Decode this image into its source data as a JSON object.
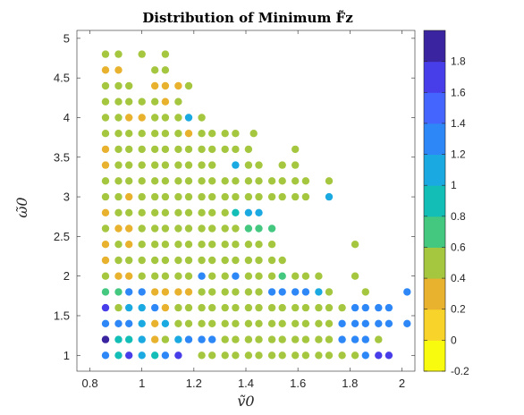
{
  "chart_data": {
    "type": "scatter",
    "title": "Distribution of Minimum F̃z",
    "xlabel": "ṽ0",
    "ylabel": "ω̃0",
    "xlim": [
      0.75,
      2.05
    ],
    "ylim": [
      0.8,
      5.1
    ],
    "xticks": [
      "0.8",
      "1",
      "1.2",
      "1.4",
      "1.6",
      "1.8",
      "2"
    ],
    "yticks": [
      "1",
      "1.5",
      "2",
      "2.5",
      "3",
      "3.5",
      "4",
      "4.5",
      "5"
    ],
    "grid": false,
    "colorbar": {
      "clim": [
        -0.2,
        2.0
      ],
      "ticks": [
        "-0.2",
        "0",
        "0.2",
        "0.4",
        "0.6",
        "0.8",
        "1",
        "1.2",
        "1.4",
        "1.6",
        "1.8"
      ],
      "colors": [
        "#f9fb0e",
        "#f8d32a",
        "#e8b22e",
        "#a5c73f",
        "#44c880",
        "#13beb7",
        "#1ba9e1",
        "#2e87f7",
        "#4566fe",
        "#483ee9",
        "#3a249f"
      ]
    },
    "points": [
      [
        0.86,
        4.8,
        0.5
      ],
      [
        0.91,
        4.8,
        0.5
      ],
      [
        1.0,
        4.8,
        0.5
      ],
      [
        1.09,
        4.8,
        0.5
      ],
      [
        0.86,
        4.6,
        0.35
      ],
      [
        0.91,
        4.6,
        0.35
      ],
      [
        1.05,
        4.6,
        0.5
      ],
      [
        1.09,
        4.6,
        0.5
      ],
      [
        0.86,
        4.4,
        0.5
      ],
      [
        0.91,
        4.4,
        0.5
      ],
      [
        0.95,
        4.4,
        0.5
      ],
      [
        1.05,
        4.4,
        0.35
      ],
      [
        1.09,
        4.4,
        0.35
      ],
      [
        1.14,
        4.4,
        0.25
      ],
      [
        1.18,
        4.4,
        0.5
      ],
      [
        0.86,
        4.2,
        0.5
      ],
      [
        0.91,
        4.2,
        0.5
      ],
      [
        0.95,
        4.2,
        0.5
      ],
      [
        1.0,
        4.2,
        0.5
      ],
      [
        1.05,
        4.2,
        0.5
      ],
      [
        1.09,
        4.2,
        0.35
      ],
      [
        1.14,
        4.2,
        0.5
      ],
      [
        0.86,
        4.0,
        0.5
      ],
      [
        0.91,
        4.0,
        0.5
      ],
      [
        0.95,
        4.0,
        0.35
      ],
      [
        1.0,
        4.0,
        0.35
      ],
      [
        1.05,
        4.0,
        0.5
      ],
      [
        1.09,
        4.0,
        0.5
      ],
      [
        1.14,
        4.0,
        0.5
      ],
      [
        1.18,
        4.0,
        1.1
      ],
      [
        1.23,
        4.0,
        0.5
      ],
      [
        0.86,
        3.8,
        0.5
      ],
      [
        0.91,
        3.8,
        0.5
      ],
      [
        0.95,
        3.8,
        0.5
      ],
      [
        1.0,
        3.8,
        0.5
      ],
      [
        1.05,
        3.8,
        0.5
      ],
      [
        1.09,
        3.8,
        0.5
      ],
      [
        1.14,
        3.8,
        0.5
      ],
      [
        1.18,
        3.8,
        0.35
      ],
      [
        1.23,
        3.8,
        0.5
      ],
      [
        1.27,
        3.8,
        0.5
      ],
      [
        1.32,
        3.8,
        0.5
      ],
      [
        1.36,
        3.8,
        0.5
      ],
      [
        1.43,
        3.8,
        0.5
      ],
      [
        0.86,
        3.6,
        0.25
      ],
      [
        0.91,
        3.6,
        0.5
      ],
      [
        0.95,
        3.6,
        0.5
      ],
      [
        1.0,
        3.6,
        0.5
      ],
      [
        1.05,
        3.6,
        0.5
      ],
      [
        1.09,
        3.6,
        0.5
      ],
      [
        1.14,
        3.6,
        0.5
      ],
      [
        1.18,
        3.6,
        0.5
      ],
      [
        1.23,
        3.6,
        0.5
      ],
      [
        1.27,
        3.6,
        0.5
      ],
      [
        1.32,
        3.6,
        0.5
      ],
      [
        1.36,
        3.6,
        0.5
      ],
      [
        1.41,
        3.6,
        0.5
      ],
      [
        1.59,
        3.6,
        0.5
      ],
      [
        0.86,
        3.4,
        0.25
      ],
      [
        0.91,
        3.4,
        0.5
      ],
      [
        0.95,
        3.4,
        0.5
      ],
      [
        1.0,
        3.4,
        0.5
      ],
      [
        1.05,
        3.4,
        0.5
      ],
      [
        1.09,
        3.4,
        0.5
      ],
      [
        1.14,
        3.4,
        0.5
      ],
      [
        1.18,
        3.4,
        0.5
      ],
      [
        1.23,
        3.4,
        0.5
      ],
      [
        1.27,
        3.4,
        0.5
      ],
      [
        1.36,
        3.4,
        1.1
      ],
      [
        1.41,
        3.4,
        0.5
      ],
      [
        1.45,
        3.4,
        0.5
      ],
      [
        1.54,
        3.4,
        0.5
      ],
      [
        1.59,
        3.4,
        0.5
      ],
      [
        0.86,
        3.2,
        0.5
      ],
      [
        0.91,
        3.2,
        0.5
      ],
      [
        0.95,
        3.2,
        0.5
      ],
      [
        1.0,
        3.2,
        0.5
      ],
      [
        1.05,
        3.2,
        0.5
      ],
      [
        1.09,
        3.2,
        0.5
      ],
      [
        1.14,
        3.2,
        0.5
      ],
      [
        1.18,
        3.2,
        0.5
      ],
      [
        1.23,
        3.2,
        0.5
      ],
      [
        1.27,
        3.2,
        0.5
      ],
      [
        1.32,
        3.2,
        0.5
      ],
      [
        1.36,
        3.2,
        0.5
      ],
      [
        1.41,
        3.2,
        0.5
      ],
      [
        1.45,
        3.2,
        0.5
      ],
      [
        1.5,
        3.2,
        0.5
      ],
      [
        1.54,
        3.2,
        0.5
      ],
      [
        1.59,
        3.2,
        0.5
      ],
      [
        1.63,
        3.2,
        0.5
      ],
      [
        1.72,
        3.2,
        0.5
      ],
      [
        0.86,
        3.0,
        0.5
      ],
      [
        0.91,
        3.0,
        0.5
      ],
      [
        0.95,
        3.0,
        0.35
      ],
      [
        1.0,
        3.0,
        0.5
      ],
      [
        1.05,
        3.0,
        0.5
      ],
      [
        1.09,
        3.0,
        0.5
      ],
      [
        1.14,
        3.0,
        0.5
      ],
      [
        1.18,
        3.0,
        0.5
      ],
      [
        1.23,
        3.0,
        0.5
      ],
      [
        1.27,
        3.0,
        0.5
      ],
      [
        1.32,
        3.0,
        0.5
      ],
      [
        1.36,
        3.0,
        0.5
      ],
      [
        1.41,
        3.0,
        0.5
      ],
      [
        1.45,
        3.0,
        0.5
      ],
      [
        1.5,
        3.0,
        0.5
      ],
      [
        1.54,
        3.0,
        0.5
      ],
      [
        1.59,
        3.0,
        0.5
      ],
      [
        1.63,
        3.0,
        0.5
      ],
      [
        1.72,
        3.0,
        1.1
      ],
      [
        0.86,
        2.8,
        0.35
      ],
      [
        0.91,
        2.8,
        0.5
      ],
      [
        0.95,
        2.8,
        0.5
      ],
      [
        1.0,
        2.8,
        0.5
      ],
      [
        1.05,
        2.8,
        0.5
      ],
      [
        1.09,
        2.8,
        0.5
      ],
      [
        1.14,
        2.8,
        0.5
      ],
      [
        1.18,
        2.8,
        0.5
      ],
      [
        1.23,
        2.8,
        0.5
      ],
      [
        1.27,
        2.8,
        0.5
      ],
      [
        1.32,
        2.8,
        0.5
      ],
      [
        1.36,
        2.8,
        0.85
      ],
      [
        1.41,
        2.8,
        1.1
      ],
      [
        1.45,
        2.8,
        1.1
      ],
      [
        0.86,
        2.6,
        0.5
      ],
      [
        0.91,
        2.6,
        0.25
      ],
      [
        0.95,
        2.6,
        0.25
      ],
      [
        1.0,
        2.6,
        0.5
      ],
      [
        1.05,
        2.6,
        0.5
      ],
      [
        1.09,
        2.6,
        0.5
      ],
      [
        1.14,
        2.6,
        0.5
      ],
      [
        1.18,
        2.6,
        0.5
      ],
      [
        1.23,
        2.6,
        0.5
      ],
      [
        1.27,
        2.6,
        0.5
      ],
      [
        1.32,
        2.6,
        0.5
      ],
      [
        1.36,
        2.6,
        0.5
      ],
      [
        1.41,
        2.6,
        0.7
      ],
      [
        1.45,
        2.6,
        0.7
      ],
      [
        1.5,
        2.6,
        0.7
      ],
      [
        0.86,
        2.4,
        0.25
      ],
      [
        0.91,
        2.4,
        0.5
      ],
      [
        0.95,
        2.4,
        0.25
      ],
      [
        1.0,
        2.4,
        0.5
      ],
      [
        1.05,
        2.4,
        0.5
      ],
      [
        1.09,
        2.4,
        0.5
      ],
      [
        1.14,
        2.4,
        0.5
      ],
      [
        1.18,
        2.4,
        0.5
      ],
      [
        1.23,
        2.4,
        0.5
      ],
      [
        1.27,
        2.4,
        0.5
      ],
      [
        1.32,
        2.4,
        0.5
      ],
      [
        1.36,
        2.4,
        0.5
      ],
      [
        1.41,
        2.4,
        0.5
      ],
      [
        1.45,
        2.4,
        0.5
      ],
      [
        1.5,
        2.4,
        0.5
      ],
      [
        1.82,
        2.4,
        0.5
      ],
      [
        0.86,
        2.2,
        0.25
      ],
      [
        0.91,
        2.2,
        0.5
      ],
      [
        0.95,
        2.2,
        0.5
      ],
      [
        1.0,
        2.2,
        0.5
      ],
      [
        1.05,
        2.2,
        0.5
      ],
      [
        1.09,
        2.2,
        0.5
      ],
      [
        1.14,
        2.2,
        0.5
      ],
      [
        1.18,
        2.2,
        0.5
      ],
      [
        1.23,
        2.2,
        0.5
      ],
      [
        1.27,
        2.2,
        0.5
      ],
      [
        1.32,
        2.2,
        0.5
      ],
      [
        1.36,
        2.2,
        0.5
      ],
      [
        1.41,
        2.2,
        0.5
      ],
      [
        1.45,
        2.2,
        0.5
      ],
      [
        1.5,
        2.2,
        0.5
      ],
      [
        1.54,
        2.2,
        0.5
      ],
      [
        0.86,
        2.0,
        0.5
      ],
      [
        0.91,
        2.0,
        0.25
      ],
      [
        0.95,
        2.0,
        0.25
      ],
      [
        1.0,
        2.0,
        0.5
      ],
      [
        1.05,
        2.0,
        0.5
      ],
      [
        1.09,
        2.0,
        0.5
      ],
      [
        1.14,
        2.0,
        0.5
      ],
      [
        1.18,
        2.0,
        0.5
      ],
      [
        1.23,
        2.0,
        1.3
      ],
      [
        1.27,
        2.0,
        0.5
      ],
      [
        1.32,
        2.0,
        0.5
      ],
      [
        1.36,
        2.0,
        1.3
      ],
      [
        1.41,
        2.0,
        0.5
      ],
      [
        1.45,
        2.0,
        0.5
      ],
      [
        1.5,
        2.0,
        0.5
      ],
      [
        1.54,
        2.0,
        0.7
      ],
      [
        1.59,
        2.0,
        0.5
      ],
      [
        1.63,
        2.0,
        0.5
      ],
      [
        1.68,
        2.0,
        0.5
      ],
      [
        1.82,
        2.0,
        0.5
      ],
      [
        0.86,
        1.8,
        0.7
      ],
      [
        0.91,
        1.8,
        0.7
      ],
      [
        0.95,
        1.8,
        1.3
      ],
      [
        1.0,
        1.8,
        1.3
      ],
      [
        1.05,
        1.8,
        0.25
      ],
      [
        1.09,
        1.8,
        0.25
      ],
      [
        1.14,
        1.8,
        0.25
      ],
      [
        1.18,
        1.8,
        0.25
      ],
      [
        1.23,
        1.8,
        0.5
      ],
      [
        1.27,
        1.8,
        0.5
      ],
      [
        1.32,
        1.8,
        0.5
      ],
      [
        1.36,
        1.8,
        0.5
      ],
      [
        1.41,
        1.8,
        0.5
      ],
      [
        1.45,
        1.8,
        0.5
      ],
      [
        1.5,
        1.8,
        1.3
      ],
      [
        1.54,
        1.8,
        1.3
      ],
      [
        1.59,
        1.8,
        1.3
      ],
      [
        1.63,
        1.8,
        1.3
      ],
      [
        1.68,
        1.8,
        1.1
      ],
      [
        1.72,
        1.8,
        0.5
      ],
      [
        1.86,
        1.8,
        0.5
      ],
      [
        2.02,
        1.8,
        1.3
      ],
      [
        0.86,
        1.6,
        1.6
      ],
      [
        0.91,
        1.6,
        0.5
      ],
      [
        0.95,
        1.6,
        1.1
      ],
      [
        1.0,
        1.6,
        1.1
      ],
      [
        1.05,
        1.6,
        1.3
      ],
      [
        1.09,
        1.6,
        0.25
      ],
      [
        1.14,
        1.6,
        0.5
      ],
      [
        1.18,
        1.6,
        0.5
      ],
      [
        1.23,
        1.6,
        0.5
      ],
      [
        1.27,
        1.6,
        0.5
      ],
      [
        1.32,
        1.6,
        0.5
      ],
      [
        1.36,
        1.6,
        0.5
      ],
      [
        1.41,
        1.6,
        0.5
      ],
      [
        1.45,
        1.6,
        0.5
      ],
      [
        1.5,
        1.6,
        0.5
      ],
      [
        1.54,
        1.6,
        0.5
      ],
      [
        1.59,
        1.6,
        0.5
      ],
      [
        1.63,
        1.6,
        0.5
      ],
      [
        1.68,
        1.6,
        0.5
      ],
      [
        1.72,
        1.6,
        0.5
      ],
      [
        1.77,
        1.6,
        0.5
      ],
      [
        1.82,
        1.6,
        1.3
      ],
      [
        1.86,
        1.6,
        1.3
      ],
      [
        1.91,
        1.6,
        1.3
      ],
      [
        1.95,
        1.6,
        1.3
      ],
      [
        0.86,
        1.4,
        1.3
      ],
      [
        0.91,
        1.4,
        1.3
      ],
      [
        0.95,
        1.4,
        1.3
      ],
      [
        1.0,
        1.4,
        1.1
      ],
      [
        1.05,
        1.4,
        0.25
      ],
      [
        1.09,
        1.4,
        1.1
      ],
      [
        1.14,
        1.4,
        0.5
      ],
      [
        1.18,
        1.4,
        0.5
      ],
      [
        1.23,
        1.4,
        0.5
      ],
      [
        1.27,
        1.4,
        0.5
      ],
      [
        1.32,
        1.4,
        0.5
      ],
      [
        1.36,
        1.4,
        0.5
      ],
      [
        1.41,
        1.4,
        0.5
      ],
      [
        1.45,
        1.4,
        0.5
      ],
      [
        1.5,
        1.4,
        0.5
      ],
      [
        1.54,
        1.4,
        0.5
      ],
      [
        1.59,
        1.4,
        0.5
      ],
      [
        1.63,
        1.4,
        0.5
      ],
      [
        1.68,
        1.4,
        0.5
      ],
      [
        1.72,
        1.4,
        0.5
      ],
      [
        1.77,
        1.4,
        1.3
      ],
      [
        1.82,
        1.4,
        1.3
      ],
      [
        1.86,
        1.4,
        1.3
      ],
      [
        1.91,
        1.4,
        1.3
      ],
      [
        1.95,
        1.4,
        1.3
      ],
      [
        2.02,
        1.4,
        1.3
      ],
      [
        0.86,
        1.2,
        1.8
      ],
      [
        0.91,
        1.2,
        0.85
      ],
      [
        0.95,
        1.2,
        0.85
      ],
      [
        1.0,
        1.2,
        1.1
      ],
      [
        1.05,
        1.2,
        0.35
      ],
      [
        1.09,
        1.2,
        0.5
      ],
      [
        1.14,
        1.2,
        1.1
      ],
      [
        1.18,
        1.2,
        1.3
      ],
      [
        1.23,
        1.2,
        1.3
      ],
      [
        1.27,
        1.2,
        1.3
      ],
      [
        1.32,
        1.2,
        0.5
      ],
      [
        1.36,
        1.2,
        0.5
      ],
      [
        1.41,
        1.2,
        0.5
      ],
      [
        1.45,
        1.2,
        0.5
      ],
      [
        1.5,
        1.2,
        0.5
      ],
      [
        1.54,
        1.2,
        0.5
      ],
      [
        1.59,
        1.2,
        0.5
      ],
      [
        1.63,
        1.2,
        0.5
      ],
      [
        1.68,
        1.2,
        0.5
      ],
      [
        1.72,
        1.2,
        0.5
      ],
      [
        1.77,
        1.2,
        1.3
      ],
      [
        1.82,
        1.2,
        1.3
      ],
      [
        1.86,
        1.2,
        1.3
      ],
      [
        1.91,
        1.2,
        0.5
      ],
      [
        0.86,
        1.0,
        1.3
      ],
      [
        0.91,
        1.0,
        0.85
      ],
      [
        0.95,
        1.0,
        1.6
      ],
      [
        1.0,
        1.0,
        1.1
      ],
      [
        1.05,
        1.0,
        0.85
      ],
      [
        1.09,
        1.0,
        1.3
      ],
      [
        1.14,
        1.0,
        1.6
      ],
      [
        1.23,
        1.0,
        0.5
      ],
      [
        1.27,
        1.0,
        0.5
      ],
      [
        1.32,
        1.0,
        0.5
      ],
      [
        1.36,
        1.0,
        0.5
      ],
      [
        1.41,
        1.0,
        0.5
      ],
      [
        1.45,
        1.0,
        0.5
      ],
      [
        1.5,
        1.0,
        0.5
      ],
      [
        1.54,
        1.0,
        0.5
      ],
      [
        1.59,
        1.0,
        0.5
      ],
      [
        1.63,
        1.0,
        0.5
      ],
      [
        1.68,
        1.0,
        0.5
      ],
      [
        1.72,
        1.0,
        0.5
      ],
      [
        1.77,
        1.0,
        0.5
      ],
      [
        1.82,
        1.0,
        0.5
      ],
      [
        1.86,
        1.0,
        1.3
      ],
      [
        1.91,
        1.0,
        1.6
      ],
      [
        1.95,
        1.0,
        1.6
      ]
    ]
  }
}
